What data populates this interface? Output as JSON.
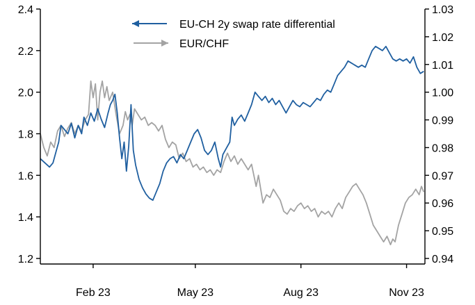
{
  "chart_data": {
    "type": "line",
    "title": "",
    "xlabel": "",
    "ylabel_left": "",
    "ylabel_right": "",
    "x_ticks": [
      "Feb 23",
      "May 23",
      "Aug 23",
      "Nov 23"
    ],
    "x_range": [
      "2022-12-31",
      "2023-12-01"
    ],
    "y_left": {
      "min": 1.2,
      "max": 2.4,
      "ticks": [
        "1.2",
        "1.4",
        "1.6",
        "1.8",
        "2.0",
        "2.2",
        "2.4"
      ]
    },
    "y_right": {
      "min": 0.94,
      "max": 1.03,
      "ticks": [
        "0.94",
        "0.95",
        "0.96",
        "0.97",
        "0.98",
        "0.99",
        "1.00",
        "1.01",
        "1.02",
        "1.03"
      ]
    },
    "grid": false,
    "legend_position": "top-center",
    "series": [
      {
        "name": "EU-CH 2y swap rate differential",
        "axis": "left",
        "color": "#1f5fa0",
        "marker": "arrow-left",
        "points": [
          [
            "2022-12-31",
            1.68
          ],
          [
            "2023-01-04",
            1.66
          ],
          [
            "2023-01-08",
            1.64
          ],
          [
            "2023-01-11",
            1.66
          ],
          [
            "2023-01-14",
            1.72
          ],
          [
            "2023-01-16",
            1.76
          ],
          [
            "2023-01-18",
            1.84
          ],
          [
            "2023-01-21",
            1.82
          ],
          [
            "2023-01-24",
            1.8
          ],
          [
            "2023-01-27",
            1.85
          ],
          [
            "2023-01-30",
            1.78
          ],
          [
            "2023-02-02",
            1.84
          ],
          [
            "2023-02-05",
            1.8
          ],
          [
            "2023-02-07",
            1.88
          ],
          [
            "2023-02-10",
            1.84
          ],
          [
            "2023-02-13",
            1.9
          ],
          [
            "2023-02-16",
            1.86
          ],
          [
            "2023-02-19",
            1.92
          ],
          [
            "2023-02-22",
            1.87
          ],
          [
            "2023-02-25",
            1.83
          ],
          [
            "2023-02-28",
            1.9
          ],
          [
            "2023-03-02",
            1.94
          ],
          [
            "2023-03-04",
            1.96
          ],
          [
            "2023-03-06",
            1.99
          ],
          [
            "2023-03-08",
            1.9
          ],
          [
            "2023-03-10",
            1.78
          ],
          [
            "2023-03-12",
            1.68
          ],
          [
            "2023-03-14",
            1.76
          ],
          [
            "2023-03-16",
            1.62
          ],
          [
            "2023-03-18",
            1.74
          ],
          [
            "2023-03-20",
            1.94
          ],
          [
            "2023-03-22",
            1.72
          ],
          [
            "2023-03-24",
            1.65
          ],
          [
            "2023-03-27",
            1.58
          ],
          [
            "2023-03-30",
            1.54
          ],
          [
            "2023-04-02",
            1.51
          ],
          [
            "2023-04-05",
            1.49
          ],
          [
            "2023-04-08",
            1.48
          ],
          [
            "2023-04-11",
            1.52
          ],
          [
            "2023-04-14",
            1.56
          ],
          [
            "2023-04-17",
            1.62
          ],
          [
            "2023-04-20",
            1.66
          ],
          [
            "2023-04-23",
            1.68
          ],
          [
            "2023-04-26",
            1.69
          ],
          [
            "2023-04-29",
            1.66
          ],
          [
            "2023-05-02",
            1.7
          ],
          [
            "2023-05-05",
            1.68
          ],
          [
            "2023-05-08",
            1.72
          ],
          [
            "2023-05-11",
            1.76
          ],
          [
            "2023-05-14",
            1.8
          ],
          [
            "2023-05-17",
            1.82
          ],
          [
            "2023-05-20",
            1.78
          ],
          [
            "2023-05-23",
            1.72
          ],
          [
            "2023-05-26",
            1.7
          ],
          [
            "2023-05-29",
            1.72
          ],
          [
            "2023-06-01",
            1.76
          ],
          [
            "2023-06-04",
            1.68
          ],
          [
            "2023-06-06",
            1.64
          ],
          [
            "2023-06-08",
            1.7
          ],
          [
            "2023-06-11",
            1.73
          ],
          [
            "2023-06-14",
            1.76
          ],
          [
            "2023-06-16",
            1.88
          ],
          [
            "2023-06-18",
            1.84
          ],
          [
            "2023-06-21",
            1.87
          ],
          [
            "2023-06-24",
            1.89
          ],
          [
            "2023-06-27",
            1.86
          ],
          [
            "2023-06-30",
            1.9
          ],
          [
            "2023-07-03",
            1.94
          ],
          [
            "2023-07-06",
            2.0
          ],
          [
            "2023-07-09",
            1.98
          ],
          [
            "2023-07-12",
            1.96
          ],
          [
            "2023-07-15",
            1.98
          ],
          [
            "2023-07-18",
            1.95
          ],
          [
            "2023-07-21",
            1.97
          ],
          [
            "2023-07-24",
            1.94
          ],
          [
            "2023-07-27",
            1.96
          ],
          [
            "2023-07-30",
            1.93
          ],
          [
            "2023-08-02",
            1.9
          ],
          [
            "2023-08-05",
            1.93
          ],
          [
            "2023-08-08",
            1.96
          ],
          [
            "2023-08-11",
            1.94
          ],
          [
            "2023-08-14",
            1.93
          ],
          [
            "2023-08-17",
            1.95
          ],
          [
            "2023-08-20",
            1.94
          ],
          [
            "2023-08-23",
            1.93
          ],
          [
            "2023-08-26",
            1.95
          ],
          [
            "2023-08-29",
            1.97
          ],
          [
            "2023-09-01",
            1.96
          ],
          [
            "2023-09-04",
            1.99
          ],
          [
            "2023-09-07",
            2.01
          ],
          [
            "2023-09-10",
            2.0
          ],
          [
            "2023-09-13",
            2.04
          ],
          [
            "2023-09-16",
            2.08
          ],
          [
            "2023-09-19",
            2.1
          ],
          [
            "2023-09-22",
            2.12
          ],
          [
            "2023-09-25",
            2.15
          ],
          [
            "2023-09-28",
            2.14
          ],
          [
            "2023-10-01",
            2.13
          ],
          [
            "2023-10-04",
            2.12
          ],
          [
            "2023-10-07",
            2.13
          ],
          [
            "2023-10-10",
            2.12
          ],
          [
            "2023-10-13",
            2.16
          ],
          [
            "2023-10-16",
            2.2
          ],
          [
            "2023-10-19",
            2.22
          ],
          [
            "2023-10-22",
            2.21
          ],
          [
            "2023-10-25",
            2.2
          ],
          [
            "2023-10-28",
            2.22
          ],
          [
            "2023-10-31",
            2.19
          ],
          [
            "2023-11-03",
            2.16
          ],
          [
            "2023-11-06",
            2.15
          ],
          [
            "2023-11-09",
            2.16
          ],
          [
            "2023-11-12",
            2.15
          ],
          [
            "2023-11-15",
            2.16
          ],
          [
            "2023-11-18",
            2.14
          ],
          [
            "2023-11-21",
            2.17
          ],
          [
            "2023-11-24",
            2.12
          ],
          [
            "2023-11-27",
            2.09
          ],
          [
            "2023-11-30",
            2.1
          ]
        ]
      },
      {
        "name": "EUR/CHF",
        "axis": "right",
        "color": "#a3a3a3",
        "marker": "arrow-right",
        "points": [
          [
            "2022-12-31",
            0.985
          ],
          [
            "2023-01-03",
            0.98
          ],
          [
            "2023-01-06",
            0.977
          ],
          [
            "2023-01-09",
            0.982
          ],
          [
            "2023-01-12",
            0.98
          ],
          [
            "2023-01-15",
            0.986
          ],
          [
            "2023-01-18",
            0.988
          ],
          [
            "2023-01-21",
            0.984
          ],
          [
            "2023-01-24",
            0.987
          ],
          [
            "2023-01-27",
            0.989
          ],
          [
            "2023-01-30",
            0.985
          ],
          [
            "2023-02-02",
            0.988
          ],
          [
            "2023-02-05",
            0.986
          ],
          [
            "2023-02-08",
            0.99
          ],
          [
            "2023-02-11",
            0.992
          ],
          [
            "2023-02-13",
            1.004
          ],
          [
            "2023-02-15",
            0.998
          ],
          [
            "2023-02-17",
            1.003
          ],
          [
            "2023-02-19",
            0.99
          ],
          [
            "2023-02-21",
            1.0
          ],
          [
            "2023-02-23",
            1.004
          ],
          [
            "2023-02-25",
            0.998
          ],
          [
            "2023-02-27",
            1.002
          ],
          [
            "2023-03-01",
            0.997
          ],
          [
            "2023-03-04",
            1.0
          ],
          [
            "2023-03-07",
            0.992
          ],
          [
            "2023-03-10",
            0.985
          ],
          [
            "2023-03-13",
            0.988
          ],
          [
            "2023-03-15",
            0.993
          ],
          [
            "2023-03-17",
            0.99
          ],
          [
            "2023-03-19",
            0.992
          ],
          [
            "2023-03-21",
            0.988
          ],
          [
            "2023-03-23",
            0.994
          ],
          [
            "2023-03-26",
            0.992
          ],
          [
            "2023-03-29",
            0.99
          ],
          [
            "2023-04-01",
            0.991
          ],
          [
            "2023-04-04",
            0.988
          ],
          [
            "2023-04-07",
            0.989
          ],
          [
            "2023-04-10",
            0.988
          ],
          [
            "2023-04-13",
            0.986
          ],
          [
            "2023-04-16",
            0.988
          ],
          [
            "2023-04-19",
            0.983
          ],
          [
            "2023-04-22",
            0.98
          ],
          [
            "2023-04-25",
            0.982
          ],
          [
            "2023-04-28",
            0.981
          ],
          [
            "2023-05-01",
            0.976
          ],
          [
            "2023-05-04",
            0.978
          ],
          [
            "2023-05-07",
            0.975
          ],
          [
            "2023-05-10",
            0.976
          ],
          [
            "2023-05-13",
            0.973
          ],
          [
            "2023-05-16",
            0.974
          ],
          [
            "2023-05-19",
            0.972
          ],
          [
            "2023-05-22",
            0.973
          ],
          [
            "2023-05-25",
            0.971
          ],
          [
            "2023-05-28",
            0.972
          ],
          [
            "2023-05-31",
            0.97
          ],
          [
            "2023-06-03",
            0.972
          ],
          [
            "2023-06-06",
            0.971
          ],
          [
            "2023-06-09",
            0.975
          ],
          [
            "2023-06-12",
            0.978
          ],
          [
            "2023-06-15",
            0.975
          ],
          [
            "2023-06-18",
            0.977
          ],
          [
            "2023-06-21",
            0.974
          ],
          [
            "2023-06-24",
            0.976
          ],
          [
            "2023-06-27",
            0.974
          ],
          [
            "2023-06-30",
            0.972
          ],
          [
            "2023-07-03",
            0.974
          ],
          [
            "2023-07-05",
            0.97
          ],
          [
            "2023-07-07",
            0.966
          ],
          [
            "2023-07-09",
            0.97
          ],
          [
            "2023-07-11",
            0.965
          ],
          [
            "2023-07-13",
            0.96
          ],
          [
            "2023-07-16",
            0.963
          ],
          [
            "2023-07-19",
            0.962
          ],
          [
            "2023-07-22",
            0.965
          ],
          [
            "2023-07-25",
            0.963
          ],
          [
            "2023-07-28",
            0.961
          ],
          [
            "2023-07-31",
            0.957
          ],
          [
            "2023-08-03",
            0.956
          ],
          [
            "2023-08-06",
            0.958
          ],
          [
            "2023-08-09",
            0.957
          ],
          [
            "2023-08-12",
            0.959
          ],
          [
            "2023-08-15",
            0.96
          ],
          [
            "2023-08-18",
            0.958
          ],
          [
            "2023-08-21",
            0.959
          ],
          [
            "2023-08-24",
            0.957
          ],
          [
            "2023-08-27",
            0.958
          ],
          [
            "2023-08-30",
            0.955
          ],
          [
            "2023-09-02",
            0.957
          ],
          [
            "2023-09-05",
            0.956
          ],
          [
            "2023-09-08",
            0.957
          ],
          [
            "2023-09-11",
            0.955
          ],
          [
            "2023-09-14",
            0.958
          ],
          [
            "2023-09-17",
            0.96
          ],
          [
            "2023-09-20",
            0.958
          ],
          [
            "2023-09-23",
            0.962
          ],
          [
            "2023-09-26",
            0.964
          ],
          [
            "2023-09-29",
            0.966
          ],
          [
            "2023-10-02",
            0.967
          ],
          [
            "2023-10-05",
            0.965
          ],
          [
            "2023-10-08",
            0.963
          ],
          [
            "2023-10-11",
            0.96
          ],
          [
            "2023-10-14",
            0.956
          ],
          [
            "2023-10-17",
            0.952
          ],
          [
            "2023-10-20",
            0.95
          ],
          [
            "2023-10-23",
            0.948
          ],
          [
            "2023-10-26",
            0.946
          ],
          [
            "2023-10-29",
            0.948
          ],
          [
            "2023-11-01",
            0.945
          ],
          [
            "2023-11-03",
            0.947
          ],
          [
            "2023-11-05",
            0.946
          ],
          [
            "2023-11-08",
            0.952
          ],
          [
            "2023-11-11",
            0.956
          ],
          [
            "2023-11-14",
            0.96
          ],
          [
            "2023-11-17",
            0.962
          ],
          [
            "2023-11-20",
            0.963
          ],
          [
            "2023-11-23",
            0.965
          ],
          [
            "2023-11-26",
            0.963
          ],
          [
            "2023-11-28",
            0.966
          ],
          [
            "2023-11-30",
            0.964
          ]
        ]
      }
    ]
  }
}
